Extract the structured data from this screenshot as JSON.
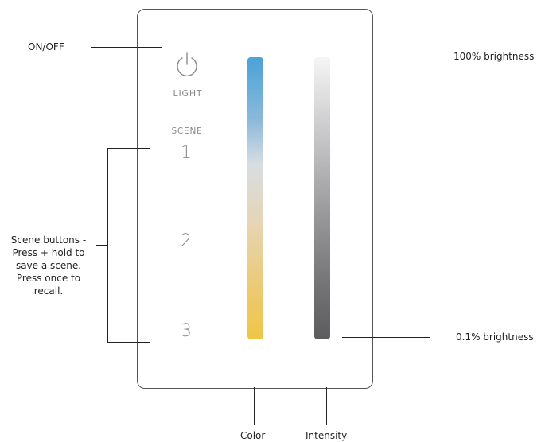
{
  "callouts": {
    "on_off": "ON/OFF",
    "brightness_max": "100% brightness",
    "brightness_min": "0.1% brightness",
    "scene_buttons": [
      "Scene buttons -",
      "Press + hold to",
      "save a scene.",
      "Press once to",
      "recall."
    ],
    "color": "Color",
    "intensity": "Intensity"
  },
  "panel": {
    "light_label": "LIGHT",
    "scene_label": "SCENE",
    "scenes": [
      "1",
      "2",
      "3"
    ]
  },
  "colors": {
    "color_bar_top": "#4aa3d6",
    "color_bar_bottom": "#efc648",
    "intensity_bar_top": "#f5f5f5",
    "intensity_bar_bottom": "#5c5c5e",
    "panel_text": "#8a8a8a"
  },
  "icons": {
    "power": "power-icon"
  }
}
